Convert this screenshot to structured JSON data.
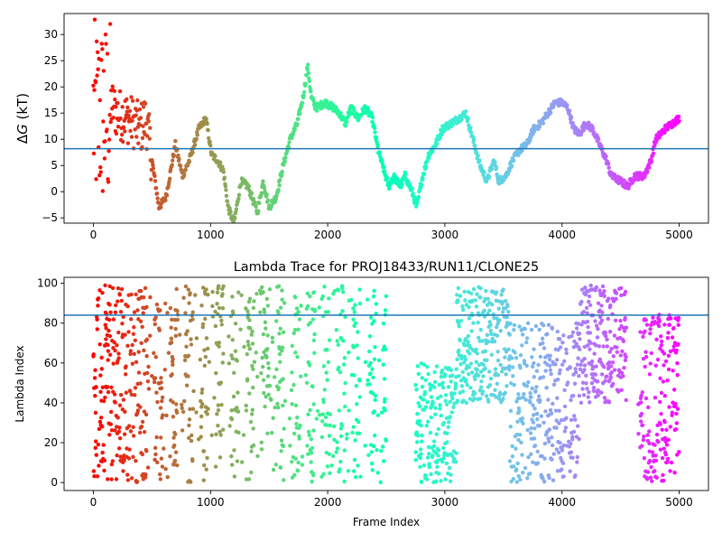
{
  "chart_data": [
    {
      "type": "scatter",
      "title": "",
      "xlabel": "",
      "ylabel": "ΔG (kT)",
      "ylabel_prefix": "Δ",
      "ylabel_var": "G",
      "ylabel_unit": " (kT)",
      "xlim": [
        -250,
        5250
      ],
      "ylim": [
        -6,
        34
      ],
      "xticks": [
        0,
        1000,
        2000,
        3000,
        4000,
        5000
      ],
      "yticks": [
        -5,
        0,
        5,
        10,
        15,
        20,
        25,
        30
      ],
      "hline": 8.2,
      "hline_color": "#1f77b4",
      "colormap": "rainbow (reversed with frame index: red at frame 0, violet at frame 5000)",
      "grid": false,
      "trace_knots": [
        [
          0,
          28
        ],
        [
          60,
          20
        ],
        [
          120,
          18
        ],
        [
          200,
          15
        ],
        [
          300,
          14
        ],
        [
          400,
          12
        ],
        [
          450,
          14
        ],
        [
          500,
          6
        ],
        [
          560,
          -3
        ],
        [
          620,
          -1
        ],
        [
          700,
          9
        ],
        [
          760,
          3
        ],
        [
          820,
          6
        ],
        [
          900,
          12
        ],
        [
          960,
          14
        ],
        [
          1010,
          7
        ],
        [
          1060,
          6
        ],
        [
          1110,
          4
        ],
        [
          1150,
          -3
        ],
        [
          1200,
          -6
        ],
        [
          1260,
          2
        ],
        [
          1320,
          1
        ],
        [
          1400,
          -4
        ],
        [
          1450,
          2
        ],
        [
          1500,
          -3
        ],
        [
          1560,
          -1
        ],
        [
          1620,
          5
        ],
        [
          1680,
          10
        ],
        [
          1740,
          13
        ],
        [
          1790,
          18
        ],
        [
          1830,
          24
        ],
        [
          1860,
          18
        ],
        [
          1900,
          16
        ],
        [
          1980,
          17
        ],
        [
          2050,
          16
        ],
        [
          2100,
          15
        ],
        [
          2150,
          13
        ],
        [
          2200,
          16
        ],
        [
          2260,
          14
        ],
        [
          2320,
          16
        ],
        [
          2380,
          14
        ],
        [
          2430,
          8
        ],
        [
          2480,
          4
        ],
        [
          2520,
          1
        ],
        [
          2560,
          3
        ],
        [
          2620,
          1
        ],
        [
          2660,
          3
        ],
        [
          2720,
          0
        ],
        [
          2760,
          -3
        ],
        [
          2800,
          2
        ],
        [
          2860,
          7
        ],
        [
          2920,
          9
        ],
        [
          2980,
          12
        ],
        [
          3050,
          13
        ],
        [
          3120,
          14
        ],
        [
          3180,
          15
        ],
        [
          3240,
          10
        ],
        [
          3300,
          5
        ],
        [
          3360,
          2
        ],
        [
          3420,
          6
        ],
        [
          3460,
          2
        ],
        [
          3520,
          3
        ],
        [
          3580,
          6
        ],
        [
          3640,
          8
        ],
        [
          3700,
          9
        ],
        [
          3760,
          12
        ],
        [
          3820,
          13
        ],
        [
          3880,
          15
        ],
        [
          3940,
          17
        ],
        [
          4000,
          17
        ],
        [
          4050,
          16
        ],
        [
          4100,
          12
        ],
        [
          4150,
          11
        ],
        [
          4200,
          13
        ],
        [
          4260,
          12
        ],
        [
          4300,
          10
        ],
        [
          4340,
          8
        ],
        [
          4380,
          6
        ],
        [
          4420,
          3
        ],
        [
          4500,
          2
        ],
        [
          4560,
          1
        ],
        [
          4620,
          3
        ],
        [
          4700,
          3
        ],
        [
          4760,
          6
        ],
        [
          4800,
          10
        ],
        [
          4880,
          12
        ],
        [
          4940,
          13
        ],
        [
          5000,
          14
        ]
      ],
      "scatter_spread_note": "frames 0-150 span ΔG about -4 to 33; frames 150-500 span about 4 to 25"
    },
    {
      "type": "scatter",
      "title": "Lambda Trace for PROJ18433/RUN11/CLONE25",
      "xlabel": "Frame Index",
      "ylabel": "Lambda Index",
      "xlim": [
        -250,
        5250
      ],
      "ylim": [
        -4,
        103
      ],
      "xticks": [
        0,
        1000,
        2000,
        3000,
        4000,
        5000
      ],
      "yticks": [
        0,
        20,
        40,
        60,
        80,
        100
      ],
      "hline": 84,
      "hline_color": "#1f77b4",
      "colormap": "rainbow (reversed with frame index: red at frame 0, violet at frame 5000)",
      "grid": false,
      "value_range": [
        0,
        99
      ],
      "density_bands": [
        {
          "x": [
            0,
            1700
          ],
          "y": [
            0,
            99
          ]
        },
        {
          "x": [
            1700,
            2500
          ],
          "y": [
            0,
            99
          ]
        },
        {
          "x": [
            2750,
            3100
          ],
          "y": [
            0,
            60
          ]
        },
        {
          "x": [
            3100,
            3550
          ],
          "y": [
            40,
            99
          ]
        },
        {
          "x": [
            3550,
            4150
          ],
          "y": [
            0,
            80
          ]
        },
        {
          "x": [
            4150,
            4550
          ],
          "y": [
            40,
            99
          ]
        },
        {
          "x": [
            4650,
            5000
          ],
          "y": [
            0,
            85
          ]
        }
      ]
    }
  ]
}
